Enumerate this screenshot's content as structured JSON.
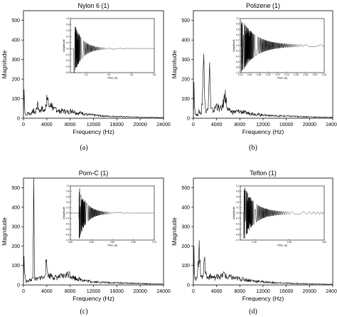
{
  "chart_data": [
    {
      "type": "line",
      "title": "Nylon 6 (1)",
      "caption": "(a)",
      "xlabel": "Frequency (Hz)",
      "ylabel": "Magnitude",
      "xlim": [
        0,
        24000
      ],
      "ylim": [
        0,
        550
      ],
      "xticks": [
        "0",
        "4000",
        "8000",
        "12000",
        "16000",
        "20000",
        "24000"
      ],
      "yticks": [
        "0",
        "100",
        "200",
        "300",
        "400",
        "500"
      ],
      "x": [
        0,
        100,
        200,
        300,
        500,
        800,
        1200,
        1600,
        2000,
        2400,
        2800,
        3200,
        3600,
        4000,
        4400,
        4800,
        5200,
        5600,
        6000,
        6800,
        7600,
        8400,
        9200,
        10000,
        11000,
        12000,
        14000,
        16000,
        18000,
        20000,
        22000,
        24000
      ],
      "y": [
        20,
        148,
        65,
        25,
        18,
        30,
        22,
        45,
        28,
        75,
        40,
        55,
        35,
        120,
        60,
        80,
        45,
        55,
        38,
        42,
        35,
        45,
        28,
        30,
        20,
        18,
        12,
        10,
        8,
        6,
        5,
        4
      ],
      "inset": {
        "xlabel": "Time (s)",
        "ylabel": "Amplitude",
        "xticks": [
          "0.2",
          "0.4",
          "0.6",
          "0.8"
        ],
        "yticks": [
          "-0.8",
          "-0.6",
          "-0.4",
          "-0.2",
          "0.0",
          "0.2",
          "0.4",
          "0.6",
          "0.8",
          "1.0"
        ],
        "xlim": [
          0.06,
          0.8
        ],
        "ylim": [
          -0.8,
          1.0
        ],
        "signal": {
          "onset": 0.09,
          "peak": 0.9,
          "decay": 0.07,
          "period": 0.03,
          "floor": 0.012
        }
      }
    },
    {
      "type": "line",
      "title": "Polizene (1)",
      "caption": "(b)",
      "xlabel": "Frequency (Hz)",
      "ylabel": "Magnitude",
      "xlim": [
        0,
        24000
      ],
      "ylim": [
        0,
        550
      ],
      "xticks": [
        "0",
        "4000",
        "8000",
        "12000",
        "16000",
        "20000",
        "24000"
      ],
      "yticks": [
        "0",
        "100",
        "200",
        "300",
        "400",
        "500"
      ],
      "x": [
        0,
        100,
        200,
        400,
        700,
        1000,
        1400,
        1800,
        2100,
        2500,
        2800,
        3000,
        3500,
        4000,
        4500,
        5000,
        5500,
        5800,
        6200,
        7000,
        8000,
        9000,
        10000,
        11000,
        12000,
        14000,
        16000,
        18000,
        20000,
        22000,
        24000
      ],
      "y": [
        20,
        185,
        60,
        20,
        18,
        40,
        25,
        330,
        40,
        45,
        285,
        50,
        40,
        75,
        50,
        60,
        145,
        55,
        40,
        35,
        40,
        30,
        28,
        22,
        18,
        14,
        12,
        10,
        8,
        6,
        5
      ],
      "inset": {
        "xlabel": "Time (s)",
        "ylabel": "Amplitude",
        "xticks": [
          "0.14",
          "0.16",
          "0.18",
          "0.20",
          "0.22",
          "0.24",
          "0.26",
          "0.28",
          "0.30",
          "0.32"
        ],
        "yticks": [
          "-1.0",
          "-0.8",
          "-0.6",
          "-0.4",
          "-0.2",
          "0.0",
          "0.2",
          "0.4",
          "0.6",
          "0.8",
          "1.0"
        ],
        "xlim": [
          0.14,
          0.32
        ],
        "ylim": [
          -1.0,
          1.0
        ],
        "signal": {
          "onset": 0.142,
          "peak": 1.0,
          "decay": 0.03,
          "period": 0.006,
          "floor": 0.03
        }
      }
    },
    {
      "type": "line",
      "title": "Pom-C (1)",
      "caption": "(c)",
      "xlabel": "Frequency (Hz)",
      "ylabel": "Magnitude",
      "xlim": [
        0,
        24000
      ],
      "ylim": [
        0,
        550
      ],
      "xticks": [
        "0",
        "4000",
        "8000",
        "12000",
        "16000",
        "20000",
        "24000"
      ],
      "yticks": [
        "0",
        "100",
        "200",
        "300",
        "400",
        "500"
      ],
      "x": [
        0,
        100,
        200,
        400,
        800,
        1200,
        1600,
        1750,
        1900,
        2200,
        2600,
        3000,
        3500,
        3900,
        4300,
        4800,
        5200,
        6000,
        7000,
        7800,
        8400,
        9200,
        10000,
        11000,
        12000,
        14000,
        16000,
        18000,
        20000,
        22000,
        24000
      ],
      "y": [
        20,
        150,
        60,
        22,
        20,
        30,
        35,
        560,
        40,
        30,
        35,
        45,
        35,
        118,
        50,
        55,
        40,
        45,
        50,
        65,
        45,
        35,
        30,
        22,
        18,
        14,
        12,
        10,
        8,
        6,
        5
      ],
      "inset": {
        "xlabel": "Time (s)",
        "ylabel": "Amplitude",
        "xticks": [
          "2.50",
          "2.55",
          "2.60",
          "2.65",
          "2.70"
        ],
        "yticks": [
          "-1.0",
          "-0.8",
          "-0.6",
          "-0.4",
          "-0.2",
          "0.0",
          "0.2",
          "0.4",
          "0.6",
          "0.8",
          "1.0"
        ],
        "xlim": [
          2.5,
          2.7
        ],
        "ylim": [
          -1.0,
          1.0
        ],
        "signal": {
          "onset": 2.52,
          "peak": 1.0,
          "decay": 0.018,
          "period": 0.006,
          "floor": 0.02
        }
      }
    },
    {
      "type": "line",
      "title": "Teflon (1)",
      "caption": "(d)",
      "xlabel": "Frequency (Hz)",
      "ylabel": "Magnitude",
      "xlim": [
        0,
        24000
      ],
      "ylim": [
        0,
        550
      ],
      "xticks": [
        "0",
        "4000",
        "8000",
        "12000",
        "16000",
        "20000",
        "24000"
      ],
      "yticks": [
        "0",
        "100",
        "200",
        "300",
        "400",
        "500"
      ],
      "x": [
        0,
        100,
        200,
        400,
        700,
        1000,
        1300,
        1600,
        1900,
        2300,
        2800,
        3200,
        3800,
        4300,
        4800,
        5300,
        5800,
        6300,
        7000,
        8000,
        9000,
        10000,
        11000,
        12000,
        14000,
        16000,
        18000,
        20000,
        22000,
        24000
      ],
      "y": [
        20,
        200,
        60,
        25,
        45,
        230,
        40,
        50,
        130,
        40,
        50,
        45,
        40,
        55,
        45,
        65,
        40,
        45,
        38,
        35,
        30,
        25,
        20,
        18,
        12,
        10,
        8,
        6,
        5,
        4
      ],
      "inset": {
        "xlabel": "Time (s)",
        "ylabel": "Amplitude",
        "xticks": [
          "2.40",
          "2.45",
          "2.50"
        ],
        "yticks": [
          "-1.0",
          "-0.8",
          "-0.6",
          "-0.4",
          "-0.2",
          "0.0",
          "0.2",
          "0.4",
          "0.6",
          "0.8",
          "1.0"
        ],
        "xlim": [
          2.38,
          2.5
        ],
        "ylim": [
          -1.0,
          1.0
        ],
        "signal": {
          "onset": 2.385,
          "peak": 1.0,
          "decay": 0.015,
          "period": 0.004,
          "floor": 0.04
        }
      }
    }
  ]
}
